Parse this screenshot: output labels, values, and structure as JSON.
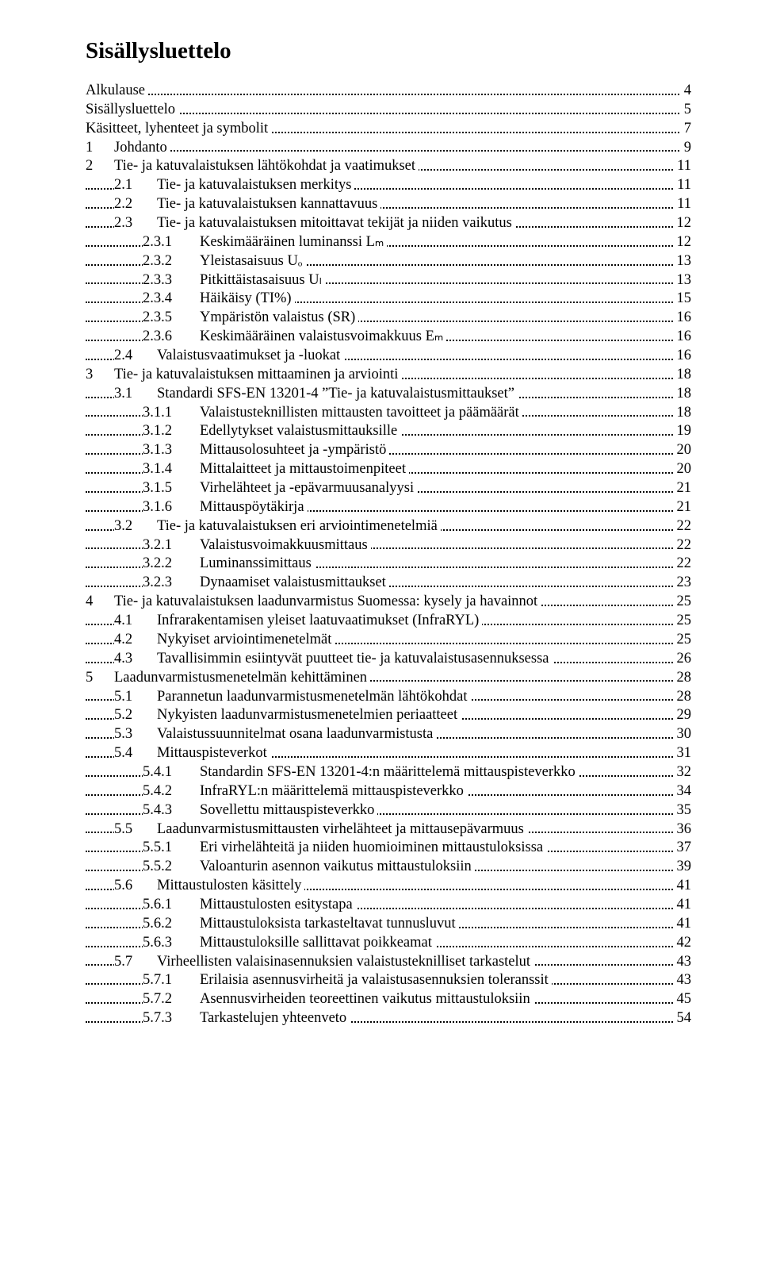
{
  "title": "Sisällysluettelo",
  "entries": [
    {
      "level": 0,
      "num": "",
      "text": "Alkulause",
      "page": "4"
    },
    {
      "level": 0,
      "num": "",
      "text": "Sisällysluettelo",
      "page": "5"
    },
    {
      "level": 0,
      "num": "",
      "text": "Käsitteet, lyhenteet ja symbolit",
      "page": "7"
    },
    {
      "level": 1,
      "num": "1",
      "text": "Johdanto",
      "page": "9"
    },
    {
      "level": 1,
      "num": "2",
      "text": "Tie- ja katuvalaistuksen lähtökohdat ja vaatimukset",
      "page": "11"
    },
    {
      "level": 2,
      "num": "2.1",
      "text": "Tie- ja katuvalaistuksen merkitys",
      "page": "11"
    },
    {
      "level": 2,
      "num": "2.2",
      "text": "Tie- ja katuvalaistuksen kannattavuus",
      "page": "11"
    },
    {
      "level": 2,
      "num": "2.3",
      "text": "Tie- ja katuvalaistuksen mitoittavat tekijät ja niiden vaikutus",
      "page": "12"
    },
    {
      "level": 3,
      "num": "2.3.1",
      "text": "Keskimääräinen luminanssi Lₘ",
      "page": "12"
    },
    {
      "level": 3,
      "num": "2.3.2",
      "text": "Yleistasaisuus Uₒ",
      "page": "13"
    },
    {
      "level": 3,
      "num": "2.3.3",
      "text": "Pitkittäistasaisuus Uₗ",
      "page": "13"
    },
    {
      "level": 3,
      "num": "2.3.4",
      "text": "Häikäisy (TI%)",
      "page": "15"
    },
    {
      "level": 3,
      "num": "2.3.5",
      "text": "Ympäristön valaistus (SR)",
      "page": "16"
    },
    {
      "level": 3,
      "num": "2.3.6",
      "text": "Keskimääräinen valaistusvoimakkuus Eₘ",
      "page": "16"
    },
    {
      "level": 2,
      "num": "2.4",
      "text": "Valaistusvaatimukset ja -luokat",
      "page": "16"
    },
    {
      "level": 1,
      "num": "3",
      "text": "Tie- ja katuvalaistuksen mittaaminen ja arviointi",
      "page": "18"
    },
    {
      "level": 2,
      "num": "3.1",
      "text": "Standardi SFS-EN 13201-4 ”Tie- ja katuvalaistusmittaukset”",
      "page": "18"
    },
    {
      "level": 3,
      "num": "3.1.1",
      "text": "Valaistusteknillisten mittausten tavoitteet ja päämäärät",
      "page": "18"
    },
    {
      "level": 3,
      "num": "3.1.2",
      "text": "Edellytykset valaistusmittauksille",
      "page": "19"
    },
    {
      "level": 3,
      "num": "3.1.3",
      "text": "Mittausolosuhteet ja -ympäristö",
      "page": "20"
    },
    {
      "level": 3,
      "num": "3.1.4",
      "text": "Mittalaitteet ja mittaustoimenpiteet",
      "page": "20"
    },
    {
      "level": 3,
      "num": "3.1.5",
      "text": "Virhelähteet ja -epävarmuusanalyysi",
      "page": "21"
    },
    {
      "level": 3,
      "num": "3.1.6",
      "text": "Mittauspöytäkirja",
      "page": "21"
    },
    {
      "level": 2,
      "num": "3.2",
      "text": "Tie- ja katuvalaistuksen eri arviointimenetelmiä",
      "page": "22"
    },
    {
      "level": 3,
      "num": "3.2.1",
      "text": "Valaistusvoimakkuusmittaus",
      "page": "22"
    },
    {
      "level": 3,
      "num": "3.2.2",
      "text": "Luminanssimittaus",
      "page": "22"
    },
    {
      "level": 3,
      "num": "3.2.3",
      "text": "Dynaamiset valaistusmittaukset",
      "page": "23"
    },
    {
      "level": 1,
      "num": "4",
      "text": "Tie- ja katuvalaistuksen laadunvarmistus Suomessa: kysely ja havainnot",
      "page": "25"
    },
    {
      "level": 2,
      "num": "4.1",
      "text": "Infrarakentamisen yleiset laatuvaatimukset (InfraRYL)",
      "page": "25"
    },
    {
      "level": 2,
      "num": "4.2",
      "text": "Nykyiset arviointimenetelmät",
      "page": "25"
    },
    {
      "level": 2,
      "num": "4.3",
      "text": "Tavallisimmin esiintyvät puutteet tie- ja katuvalaistusasennuksessa",
      "page": "26"
    },
    {
      "level": 1,
      "num": "5",
      "text": "Laadunvarmistusmenetelmän kehittäminen",
      "page": "28"
    },
    {
      "level": 2,
      "num": "5.1",
      "text": "Parannetun laadunvarmistusmenetelmän lähtökohdat",
      "page": "28"
    },
    {
      "level": 2,
      "num": "5.2",
      "text": "Nykyisten laadunvarmistusmenetelmien periaatteet",
      "page": "29"
    },
    {
      "level": 2,
      "num": "5.3",
      "text": "Valaistussuunnitelmat osana laadunvarmistusta",
      "page": "30"
    },
    {
      "level": 2,
      "num": "5.4",
      "text": "Mittauspisteverkot",
      "page": "31"
    },
    {
      "level": 3,
      "num": "5.4.1",
      "text": "Standardin SFS-EN 13201-4:n määrittelemä mittauspisteverkko",
      "page": "32"
    },
    {
      "level": 3,
      "num": "5.4.2",
      "text": "InfraRYL:n määrittelemä mittauspisteverkko",
      "page": "34"
    },
    {
      "level": 3,
      "num": "5.4.3",
      "text": "Sovellettu mittauspisteverkko",
      "page": "35"
    },
    {
      "level": 2,
      "num": "5.5",
      "text": "Laadunvarmistusmittausten virhelähteet ja mittausepävarmuus",
      "page": "36"
    },
    {
      "level": 3,
      "num": "5.5.1",
      "text": "Eri virhelähteitä ja niiden huomioiminen mittaustuloksissa",
      "page": "37"
    },
    {
      "level": 3,
      "num": "5.5.2",
      "text": "Valoanturin asennon vaikutus mittaustuloksiin",
      "page": "39"
    },
    {
      "level": 2,
      "num": "5.6",
      "text": "Mittaustulosten käsittely",
      "page": "41"
    },
    {
      "level": 3,
      "num": "5.6.1",
      "text": "Mittaustulosten esitystapa",
      "page": "41"
    },
    {
      "level": 3,
      "num": "5.6.2",
      "text": "Mittaustuloksista tarkasteltavat tunnusluvut",
      "page": "41"
    },
    {
      "level": 3,
      "num": "5.6.3",
      "text": "Mittaustuloksille sallittavat poikkeamat",
      "page": "42"
    },
    {
      "level": 2,
      "num": "5.7",
      "text": "Virheellisten valaisinasennuksien valaistusteknilliset tarkastelut",
      "page": "43"
    },
    {
      "level": 3,
      "num": "5.7.1",
      "text": "Erilaisia asennusvirheitä ja valaistusasennuksien toleranssit",
      "page": "43"
    },
    {
      "level": 3,
      "num": "5.7.2",
      "text": "Asennusvirheiden teoreettinen vaikutus mittaustuloksiin",
      "page": "45"
    },
    {
      "level": 3,
      "num": "5.7.3",
      "text": "Tarkastelujen yhteenveto",
      "page": "54"
    }
  ]
}
